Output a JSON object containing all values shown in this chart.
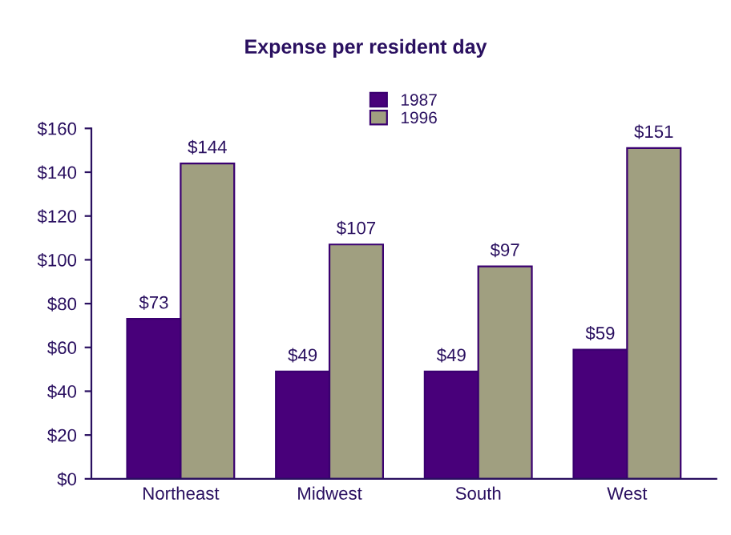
{
  "chart_data": {
    "type": "bar",
    "title": "Expense per resident day",
    "categories": [
      "Northeast",
      "Midwest",
      "South",
      "West"
    ],
    "series": [
      {
        "name": "1987",
        "color": "#48007a",
        "values": [
          73,
          49,
          49,
          59
        ],
        "value_labels": [
          "$73",
          "$49",
          "$49",
          "$59"
        ]
      },
      {
        "name": "1996",
        "color": "#a09f80",
        "values": [
          144,
          107,
          97,
          151
        ],
        "value_labels": [
          "$144",
          "$107",
          "$97",
          "$151"
        ]
      }
    ],
    "ylim": [
      0,
      160
    ],
    "yticks": [
      {
        "value": 0,
        "label": "$0"
      },
      {
        "value": 20,
        "label": "$20"
      },
      {
        "value": 40,
        "label": "$40"
      },
      {
        "value": 60,
        "label": "$60"
      },
      {
        "value": 80,
        "label": "$80"
      },
      {
        "value": 100,
        "label": "$100"
      },
      {
        "value": 120,
        "label": "$120"
      },
      {
        "value": 140,
        "label": "$140"
      },
      {
        "value": 160,
        "label": "$160"
      }
    ],
    "grid": false,
    "legend": "top"
  }
}
